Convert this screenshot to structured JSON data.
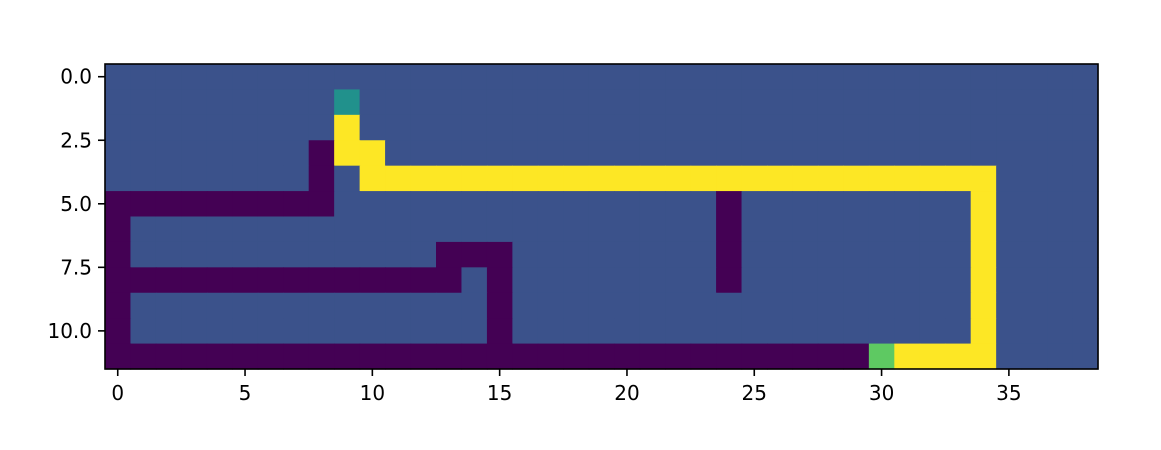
{
  "chart_data": {
    "type": "heatmap",
    "title": "",
    "xlabel": "",
    "ylabel": "",
    "n_rows": 12,
    "n_cols": 39,
    "xlim": [
      -0.5,
      38.5
    ],
    "ylim": [
      11.5,
      -0.5
    ],
    "x_ticks": [
      {
        "value": 0,
        "label": "0"
      },
      {
        "value": 5,
        "label": "5"
      },
      {
        "value": 10,
        "label": "10"
      },
      {
        "value": 15,
        "label": "15"
      },
      {
        "value": 20,
        "label": "20"
      },
      {
        "value": 25,
        "label": "25"
      },
      {
        "value": 30,
        "label": "30"
      },
      {
        "value": 35,
        "label": "35"
      }
    ],
    "y_ticks": [
      {
        "value": 0.0,
        "label": "0.0"
      },
      {
        "value": 2.5,
        "label": "2.5"
      },
      {
        "value": 5.0,
        "label": "5.0"
      },
      {
        "value": 7.5,
        "label": "7.5"
      },
      {
        "value": 10.0,
        "label": "10.0"
      }
    ],
    "grid": false,
    "colormap": "viridis",
    "palette": {
      "0": "#440154",
      "1": "#3b528b",
      "2": "#21918c",
      "3": "#5ec962",
      "4": "#fde725"
    },
    "values": [
      [
        1,
        1,
        1,
        1,
        1,
        1,
        1,
        1,
        1,
        1,
        1,
        1,
        1,
        1,
        1,
        1,
        1,
        1,
        1,
        1,
        1,
        1,
        1,
        1,
        1,
        1,
        1,
        1,
        1,
        1,
        1,
        1,
        1,
        1,
        1,
        1,
        1,
        1,
        1
      ],
      [
        1,
        1,
        1,
        1,
        1,
        1,
        1,
        1,
        1,
        2,
        1,
        1,
        1,
        1,
        1,
        1,
        1,
        1,
        1,
        1,
        1,
        1,
        1,
        1,
        1,
        1,
        1,
        1,
        1,
        1,
        1,
        1,
        1,
        1,
        1,
        1,
        1,
        1,
        1
      ],
      [
        1,
        1,
        1,
        1,
        1,
        1,
        1,
        1,
        1,
        4,
        1,
        1,
        1,
        1,
        1,
        1,
        1,
        1,
        1,
        1,
        1,
        1,
        1,
        1,
        1,
        1,
        1,
        1,
        1,
        1,
        1,
        1,
        1,
        1,
        1,
        1,
        1,
        1,
        1
      ],
      [
        1,
        1,
        1,
        1,
        1,
        1,
        1,
        1,
        0,
        4,
        4,
        1,
        1,
        1,
        1,
        1,
        1,
        1,
        1,
        1,
        1,
        1,
        1,
        1,
        1,
        1,
        1,
        1,
        1,
        1,
        1,
        1,
        1,
        1,
        1,
        1,
        1,
        1,
        1
      ],
      [
        1,
        1,
        1,
        1,
        1,
        1,
        1,
        1,
        0,
        1,
        4,
        4,
        4,
        4,
        4,
        4,
        4,
        4,
        4,
        4,
        4,
        4,
        4,
        4,
        4,
        4,
        4,
        4,
        4,
        4,
        4,
        4,
        4,
        4,
        4,
        1,
        1,
        1,
        1
      ],
      [
        0,
        0,
        0,
        0,
        0,
        0,
        0,
        0,
        0,
        1,
        1,
        1,
        1,
        1,
        1,
        1,
        1,
        1,
        1,
        1,
        1,
        1,
        1,
        1,
        0,
        1,
        1,
        1,
        1,
        1,
        1,
        1,
        1,
        1,
        4,
        1,
        1,
        1,
        1
      ],
      [
        0,
        1,
        1,
        1,
        1,
        1,
        1,
        1,
        1,
        1,
        1,
        1,
        1,
        1,
        1,
        1,
        1,
        1,
        1,
        1,
        1,
        1,
        1,
        1,
        0,
        1,
        1,
        1,
        1,
        1,
        1,
        1,
        1,
        1,
        4,
        1,
        1,
        1,
        1
      ],
      [
        0,
        1,
        1,
        1,
        1,
        1,
        1,
        1,
        1,
        1,
        1,
        1,
        1,
        0,
        0,
        0,
        1,
        1,
        1,
        1,
        1,
        1,
        1,
        1,
        0,
        1,
        1,
        1,
        1,
        1,
        1,
        1,
        1,
        1,
        4,
        1,
        1,
        1,
        1
      ],
      [
        0,
        0,
        0,
        0,
        0,
        0,
        0,
        0,
        0,
        0,
        0,
        0,
        0,
        0,
        1,
        0,
        1,
        1,
        1,
        1,
        1,
        1,
        1,
        1,
        0,
        1,
        1,
        1,
        1,
        1,
        1,
        1,
        1,
        1,
        4,
        1,
        1,
        1,
        1
      ],
      [
        0,
        1,
        1,
        1,
        1,
        1,
        1,
        1,
        1,
        1,
        1,
        1,
        1,
        1,
        1,
        0,
        1,
        1,
        1,
        1,
        1,
        1,
        1,
        1,
        1,
        1,
        1,
        1,
        1,
        1,
        1,
        1,
        1,
        1,
        4,
        1,
        1,
        1,
        1
      ],
      [
        0,
        1,
        1,
        1,
        1,
        1,
        1,
        1,
        1,
        1,
        1,
        1,
        1,
        1,
        1,
        0,
        1,
        1,
        1,
        1,
        1,
        1,
        1,
        1,
        1,
        1,
        1,
        1,
        1,
        1,
        1,
        1,
        1,
        1,
        4,
        1,
        1,
        1,
        1
      ],
      [
        0,
        0,
        0,
        0,
        0,
        0,
        0,
        0,
        0,
        0,
        0,
        0,
        0,
        0,
        0,
        0,
        0,
        0,
        0,
        0,
        0,
        0,
        0,
        0,
        0,
        0,
        0,
        0,
        0,
        0,
        3,
        4,
        4,
        4,
        4,
        1,
        1,
        1,
        1
      ]
    ]
  }
}
